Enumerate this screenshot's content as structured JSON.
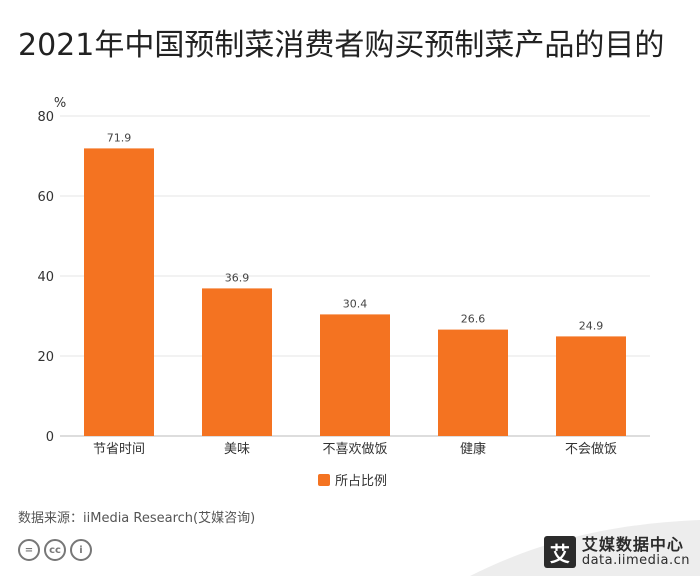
{
  "title": "2021年中国预制菜消费者购买预制菜产品的目的",
  "source": "数据来源：iiMedia Research(艾媒咨询)",
  "brand": {
    "name": "艾媒数据中心",
    "url": "data.iimedia.cn",
    "logo_char": "艾"
  },
  "license_icons": [
    "=",
    "cc",
    "i"
  ],
  "colors": {
    "bar": "#F47321",
    "grid": "#E6E6E6",
    "axis": "#BBBBBB"
  },
  "chart_data": {
    "type": "bar",
    "categories": [
      "节省时间",
      "美味",
      "不喜欢做饭",
      "健康",
      "不会做饭"
    ],
    "series": [
      {
        "name": "所占比例",
        "values": [
          71.9,
          36.9,
          30.4,
          26.6,
          24.9
        ]
      }
    ],
    "value_labels": [
      "71.9",
      "36.9",
      "30.4",
      "26.6",
      "24.9"
    ],
    "ylabel": "%",
    "ylim": [
      0,
      80
    ],
    "yticks": [
      0,
      20,
      40,
      60,
      80
    ],
    "grid": true,
    "legend_position": "bottom"
  }
}
